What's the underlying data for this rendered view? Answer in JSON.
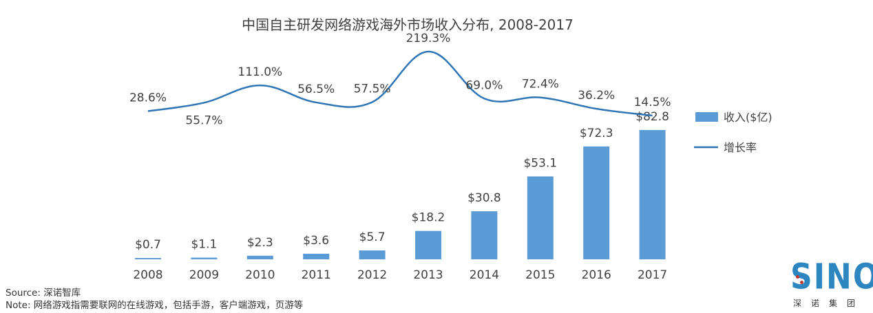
{
  "chart_data": {
    "type": "bar+line",
    "title": "中国自主研发网络游戏海外市场收入分布, 2008-2017",
    "categories": [
      "2008",
      "2009",
      "2010",
      "2011",
      "2012",
      "2013",
      "2014",
      "2015",
      "2016",
      "2017"
    ],
    "series": [
      {
        "name": "收入($亿)",
        "type": "bar",
        "values": [
          0.7,
          1.1,
          2.3,
          3.6,
          5.7,
          18.2,
          30.8,
          53.1,
          72.3,
          82.8
        ],
        "labels": [
          "$0.7",
          "$1.1",
          "$2.3",
          "$3.6",
          "$5.7",
          "$18.2",
          "$30.8",
          "$53.1",
          "$72.3",
          "$82.8"
        ],
        "color": "#5B9BD5"
      },
      {
        "name": "增长率",
        "type": "line",
        "smooth": true,
        "values": [
          28.6,
          55.7,
          111.0,
          56.5,
          57.5,
          219.3,
          69.0,
          72.4,
          36.2,
          14.5
        ],
        "labels": [
          "28.6%",
          "55.7%",
          "111.0%",
          "56.5%",
          "57.5%",
          "219.3%",
          "69.0%",
          "72.4%",
          "36.2%",
          "14.5%"
        ],
        "color": "#2E75B6"
      }
    ],
    "legend_position": "right",
    "grid": false,
    "bar_ylim": [
      0,
      100
    ]
  },
  "footer": {
    "source": "Source: 深诺智库",
    "note": "Note: 网络游戏指需要联网的在线游戏，包括手游，客户端游戏，页游等"
  },
  "logo": {
    "word": "SINO",
    "subtitle": "深诺集团",
    "color": "#2E86C1",
    "accent": "#C0392B"
  }
}
